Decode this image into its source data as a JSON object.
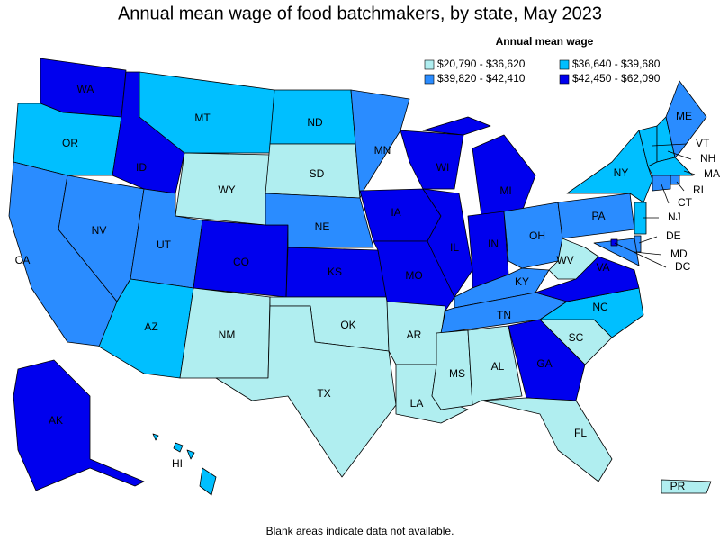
{
  "title": "Annual mean wage of food batchmakers, by state, May 2023",
  "legend": {
    "title": "Annual mean wage",
    "items": [
      {
        "label": "$20,790 - $36,620",
        "color": "#b0eef0"
      },
      {
        "label": "$36,640 - $39,680",
        "color": "#00bfff"
      },
      {
        "label": "$39,820 - $42,410",
        "color": "#2a8cff"
      },
      {
        "label": "$42,450 - $62,090",
        "color": "#0000ee"
      }
    ]
  },
  "states": [
    {
      "label": "WA",
      "class": 3
    },
    {
      "label": "OR",
      "class": 1
    },
    {
      "label": "CA",
      "class": 2
    },
    {
      "label": "NV",
      "class": 2
    },
    {
      "label": "ID",
      "class": 3
    },
    {
      "label": "MT",
      "class": 1
    },
    {
      "label": "WY",
      "class": 0
    },
    {
      "label": "UT",
      "class": 2
    },
    {
      "label": "AZ",
      "class": 1
    },
    {
      "label": "CO",
      "class": 3
    },
    {
      "label": "NM",
      "class": 0
    },
    {
      "label": "ND",
      "class": 1
    },
    {
      "label": "SD",
      "class": 0
    },
    {
      "label": "NE",
      "class": 2
    },
    {
      "label": "KS",
      "class": 3
    },
    {
      "label": "OK",
      "class": 0
    },
    {
      "label": "TX",
      "class": 0
    },
    {
      "label": "MN",
      "class": 2
    },
    {
      "label": "IA",
      "class": 3
    },
    {
      "label": "MO",
      "class": 3
    },
    {
      "label": "AR",
      "class": 0
    },
    {
      "label": "LA",
      "class": 0
    },
    {
      "label": "WI",
      "class": 3
    },
    {
      "label": "IL",
      "class": 3
    },
    {
      "label": "MI",
      "class": 3
    },
    {
      "label": "IN",
      "class": 3
    },
    {
      "label": "OH",
      "class": 2
    },
    {
      "label": "KY",
      "class": 2
    },
    {
      "label": "TN",
      "class": 2
    },
    {
      "label": "MS",
      "class": 0
    },
    {
      "label": "AL",
      "class": 0
    },
    {
      "label": "GA",
      "class": 3
    },
    {
      "label": "FL",
      "class": 0
    },
    {
      "label": "SC",
      "class": 0
    },
    {
      "label": "NC",
      "class": 1
    },
    {
      "label": "VA",
      "class": 3
    },
    {
      "label": "WV",
      "class": 0
    },
    {
      "label": "PA",
      "class": 2
    },
    {
      "label": "NY",
      "class": 1
    },
    {
      "label": "VT",
      "class": 1
    },
    {
      "label": "NH",
      "class": 1
    },
    {
      "label": "ME",
      "class": 2
    },
    {
      "label": "MA",
      "class": 1
    },
    {
      "label": "RI",
      "class": 2
    },
    {
      "label": "CT",
      "class": 2
    },
    {
      "label": "NJ",
      "class": 1
    },
    {
      "label": "DE",
      "class": 2
    },
    {
      "label": "MD",
      "class": 2
    },
    {
      "label": "DC",
      "class": 3
    },
    {
      "label": "AK",
      "class": 3
    },
    {
      "label": "HI",
      "class": 1
    },
    {
      "label": "PR",
      "class": 0
    }
  ],
  "footnote": "Blank areas indicate data not available."
}
